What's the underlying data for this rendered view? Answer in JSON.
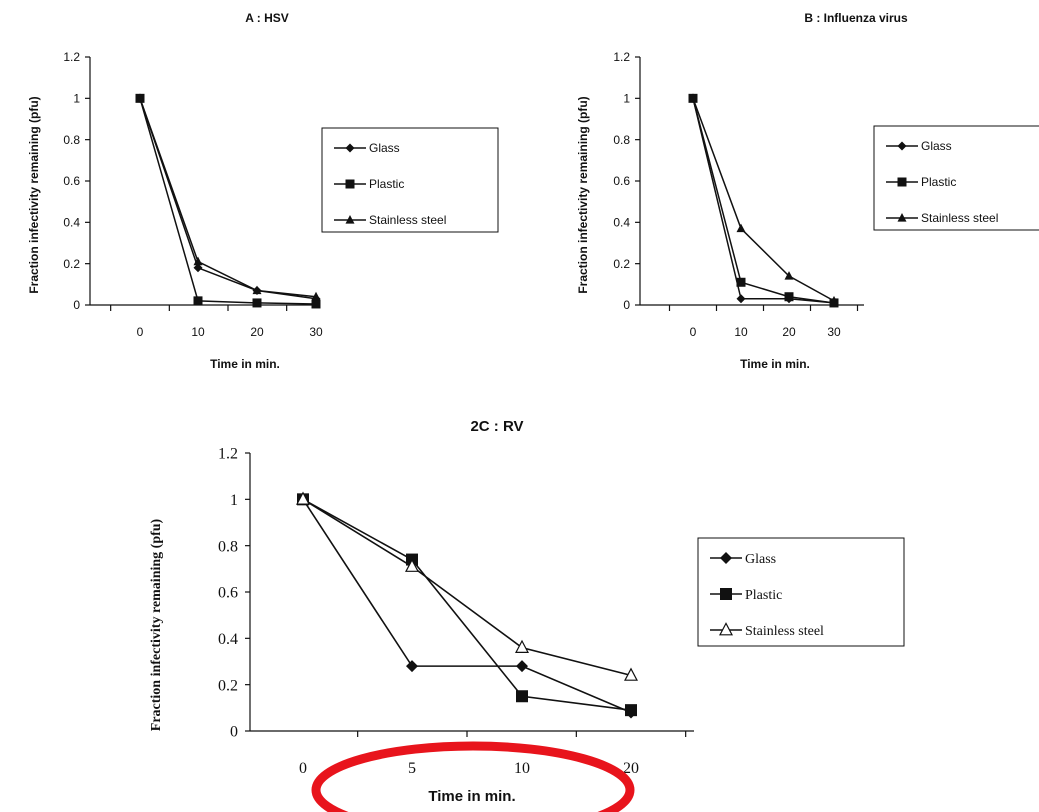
{
  "chart_data": [
    {
      "id": "A",
      "type": "line",
      "title": "A : HSV",
      "xlabel": "Time in min.",
      "ylabel": "Fraction infectivity remaining (pfu)",
      "categories": [
        "0",
        "10",
        "20",
        "30"
      ],
      "ylim": [
        0,
        1.2
      ],
      "yticks": [
        "0",
        "0.2",
        "0.4",
        "0.6",
        "0.8",
        "1",
        "1.2"
      ],
      "grid": false,
      "legend_position": "right",
      "series": [
        {
          "name": "Glass",
          "marker": "diamond",
          "values": [
            1.0,
            0.18,
            0.07,
            0.03
          ]
        },
        {
          "name": "Plastic",
          "marker": "square",
          "values": [
            1.0,
            0.02,
            0.01,
            0.005
          ]
        },
        {
          "name": "Stainless steel",
          "marker": "triangle",
          "values": [
            1.0,
            0.21,
            0.07,
            0.04
          ]
        }
      ]
    },
    {
      "id": "B",
      "type": "line",
      "title": "B : Influenza virus",
      "xlabel": "Time in min.",
      "ylabel": "Fraction infectivity remaining (pfu)",
      "categories": [
        "0",
        "10",
        "20",
        "30"
      ],
      "ylim": [
        0,
        1.2
      ],
      "yticks": [
        "0",
        "0.2",
        "0.4",
        "0.6",
        "0.8",
        "1",
        "1.2"
      ],
      "grid": false,
      "legend_position": "right",
      "series": [
        {
          "name": "Glass",
          "marker": "diamond",
          "values": [
            1.0,
            0.03,
            0.03,
            0.01
          ]
        },
        {
          "name": "Plastic",
          "marker": "square",
          "values": [
            1.0,
            0.11,
            0.04,
            0.01
          ]
        },
        {
          "name": "Stainless steel",
          "marker": "triangle",
          "values": [
            1.0,
            0.37,
            0.14,
            0.02
          ]
        }
      ]
    },
    {
      "id": "C",
      "type": "line",
      "title": "2C : RV",
      "xlabel": "Time in min.",
      "ylabel": "Fraction infectivity remaining (pfu)",
      "categories": [
        "0",
        "5",
        "10",
        "20"
      ],
      "ylim": [
        0,
        1.2
      ],
      "yticks": [
        "0",
        "0.2",
        "0.4",
        "0.6",
        "0.8",
        "1",
        "1.2"
      ],
      "grid": false,
      "legend_position": "right",
      "series": [
        {
          "name": "Glass",
          "marker": "diamond",
          "values": [
            1.0,
            0.28,
            0.28,
            0.08
          ]
        },
        {
          "name": "Plastic",
          "marker": "square",
          "values": [
            1.0,
            0.74,
            0.15,
            0.09
          ]
        },
        {
          "name": "Stainless steel",
          "marker": "triangle-open",
          "values": [
            1.0,
            0.71,
            0.36,
            0.24
          ]
        }
      ]
    }
  ],
  "annotation": {
    "shape": "ellipse",
    "color": "#e8141c"
  }
}
